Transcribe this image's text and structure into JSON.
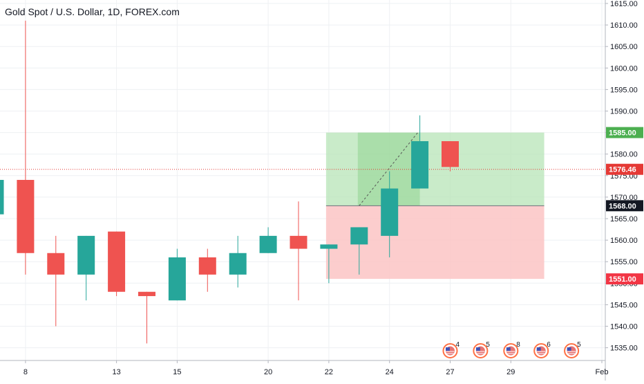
{
  "chart_data": {
    "type": "candlestick",
    "title": "Gold Spot / U.S. Dollar, 1D, FOREX.com",
    "ylim": [
      1531,
      1616
    ],
    "y_ticks": [
      1535,
      1540,
      1545,
      1550,
      1555,
      1560,
      1565,
      1570,
      1575,
      1580,
      1585,
      1590,
      1595,
      1600,
      1605,
      1610,
      1615
    ],
    "y_tick_labels": [
      "1535.00",
      "1540.00",
      "1545.00",
      "1550.00",
      "1555.00",
      "1560.00",
      "1565.00",
      "1570.00",
      "1575.00",
      "1580.00",
      "1585.00",
      "1590.00",
      "1595.00",
      "1600.00",
      "1605.00",
      "1610.00",
      "1615.00"
    ],
    "x_tick_labels": [
      "8",
      "13",
      "15",
      "20",
      "22",
      "24",
      "27",
      "29",
      "Feb"
    ],
    "x_tick_slots": [
      1,
      4,
      6,
      9,
      11,
      13,
      15,
      17,
      20
    ],
    "candles": [
      {
        "slot": 0,
        "open": 1566,
        "high": 1574,
        "low": 1565,
        "close": 1574
      },
      {
        "slot": 1,
        "open": 1574,
        "high": 1611,
        "low": 1552,
        "close": 1557
      },
      {
        "slot": 2,
        "open": 1557,
        "high": 1561,
        "low": 1540,
        "close": 1552
      },
      {
        "slot": 3,
        "open": 1552,
        "high": 1561,
        "low": 1546,
        "close": 1561
      },
      {
        "slot": 4,
        "open": 1562,
        "high": 1562,
        "low": 1547,
        "close": 1548
      },
      {
        "slot": 5,
        "open": 1548,
        "high": 1548,
        "low": 1536,
        "close": 1547
      },
      {
        "slot": 6,
        "open": 1546,
        "high": 1558,
        "low": 1546,
        "close": 1556
      },
      {
        "slot": 7,
        "open": 1556,
        "high": 1558,
        "low": 1548,
        "close": 1552
      },
      {
        "slot": 8,
        "open": 1552,
        "high": 1561,
        "low": 1549,
        "close": 1557
      },
      {
        "slot": 9,
        "open": 1557,
        "high": 1563,
        "low": 1557,
        "close": 1561
      },
      {
        "slot": 10,
        "open": 1561,
        "high": 1569,
        "low": 1546,
        "close": 1558
      },
      {
        "slot": 11,
        "open": 1558,
        "high": 1559,
        "low": 1550,
        "close": 1559
      },
      {
        "slot": 12,
        "open": 1559,
        "high": 1563,
        "low": 1552,
        "close": 1563
      },
      {
        "slot": 13,
        "open": 1561,
        "high": 1576,
        "low": 1556,
        "close": 1572
      },
      {
        "slot": 14,
        "open": 1572,
        "high": 1589,
        "low": 1572,
        "close": 1583
      },
      {
        "slot": 15,
        "open": 1583,
        "high": 1583,
        "low": 1576,
        "close": 1577
      }
    ],
    "current_price": 1576.46,
    "price_labels": {
      "target": "1585.00",
      "current": "1576.46",
      "entry": "1568.00",
      "stop": "1551.00"
    },
    "position_tool": {
      "type": "long",
      "entry": 1568,
      "target": 1585,
      "stop": 1551,
      "start_slot": 11,
      "end_slot": 18.1
    },
    "events": [
      {
        "slot": 15,
        "count": "4"
      },
      {
        "slot": 16,
        "count": "5"
      },
      {
        "slot": 17,
        "count": "8"
      },
      {
        "slot": 18,
        "count": "6"
      },
      {
        "slot": 19,
        "count": "5"
      }
    ],
    "colors": {
      "up": "#26a69a",
      "down": "#ef5350",
      "profit_zone": "#b7e4b7",
      "loss_zone": "#fcc4c4",
      "current_line": "#e53935",
      "target_label": "#4caf50",
      "stop_label": "#f23645",
      "entry_label": "#131722"
    },
    "grid": true
  }
}
